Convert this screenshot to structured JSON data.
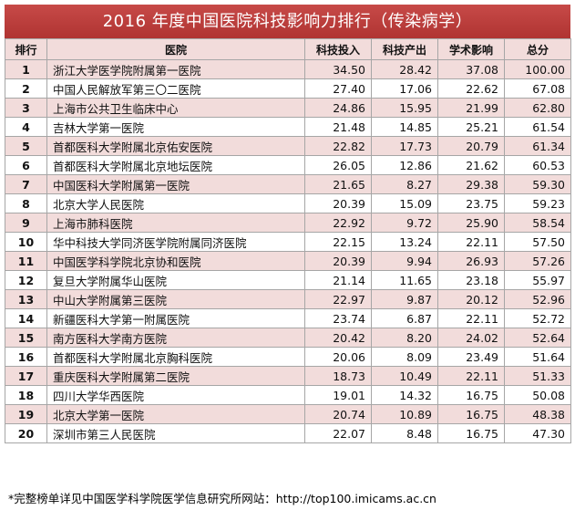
{
  "title": "2016 年度中国医院科技影响力排行（传染病学）",
  "headers": {
    "rank": "排行",
    "hospital": "医院",
    "tech_input": "科技投入",
    "tech_output": "科技产出",
    "academic": "学术影响",
    "total": "总分"
  },
  "rows": [
    {
      "rank": "1",
      "hospital": "浙江大学医学院附属第一医院",
      "input": "34.50",
      "output": "28.42",
      "academic": "37.08",
      "total": "100.00"
    },
    {
      "rank": "2",
      "hospital": "中国人民解放军第三〇二医院",
      "input": "27.40",
      "output": "17.06",
      "academic": "22.62",
      "total": "67.08"
    },
    {
      "rank": "3",
      "hospital": "上海市公共卫生临床中心",
      "input": "24.86",
      "output": "15.95",
      "academic": "21.99",
      "total": "62.80"
    },
    {
      "rank": "4",
      "hospital": "吉林大学第一医院",
      "input": "21.48",
      "output": "14.85",
      "academic": "25.21",
      "total": "61.54"
    },
    {
      "rank": "5",
      "hospital": "首都医科大学附属北京佑安医院",
      "input": "22.82",
      "output": "17.73",
      "academic": "20.79",
      "total": "61.34"
    },
    {
      "rank": "6",
      "hospital": "首都医科大学附属北京地坛医院",
      "input": "26.05",
      "output": "12.86",
      "academic": "21.62",
      "total": "60.53"
    },
    {
      "rank": "7",
      "hospital": "中国医科大学附属第一医院",
      "input": "21.65",
      "output": "8.27",
      "academic": "29.38",
      "total": "59.30"
    },
    {
      "rank": "8",
      "hospital": "北京大学人民医院",
      "input": "20.39",
      "output": "15.09",
      "academic": "23.75",
      "total": "59.23"
    },
    {
      "rank": "9",
      "hospital": "上海市肺科医院",
      "input": "22.92",
      "output": "9.72",
      "academic": "25.90",
      "total": "58.54"
    },
    {
      "rank": "10",
      "hospital": "华中科技大学同济医学院附属同济医院",
      "input": "22.15",
      "output": "13.24",
      "academic": "22.11",
      "total": "57.50"
    },
    {
      "rank": "11",
      "hospital": "中国医学科学院北京协和医院",
      "input": "20.39",
      "output": "9.94",
      "academic": "26.93",
      "total": "57.26"
    },
    {
      "rank": "12",
      "hospital": "复旦大学附属华山医院",
      "input": "21.14",
      "output": "11.65",
      "academic": "23.18",
      "total": "55.97"
    },
    {
      "rank": "13",
      "hospital": "中山大学附属第三医院",
      "input": "22.97",
      "output": "9.87",
      "academic": "20.12",
      "total": "52.96"
    },
    {
      "rank": "14",
      "hospital": "新疆医科大学第一附属医院",
      "input": "23.74",
      "output": "6.87",
      "academic": "22.11",
      "total": "52.72"
    },
    {
      "rank": "15",
      "hospital": "南方医科大学南方医院",
      "input": "20.42",
      "output": "8.20",
      "academic": "24.02",
      "total": "52.64"
    },
    {
      "rank": "16",
      "hospital": "首都医科大学附属北京胸科医院",
      "input": "20.06",
      "output": "8.09",
      "academic": "23.49",
      "total": "51.64"
    },
    {
      "rank": "17",
      "hospital": "重庆医科大学附属第二医院",
      "input": "18.73",
      "output": "10.49",
      "academic": "22.11",
      "total": "51.33"
    },
    {
      "rank": "18",
      "hospital": "四川大学华西医院",
      "input": "19.01",
      "output": "14.32",
      "academic": "16.75",
      "total": "50.08"
    },
    {
      "rank": "19",
      "hospital": "北京大学第一医院",
      "input": "20.74",
      "output": "10.89",
      "academic": "16.75",
      "total": "48.38"
    },
    {
      "rank": "20",
      "hospital": "深圳市第三人民医院",
      "input": "22.07",
      "output": "8.48",
      "academic": "16.75",
      "total": "47.30"
    }
  ],
  "footnote": "*完整榜单详见中国医学科学院医学信息研究所网站：http://top100.imicams.ac.cn",
  "colors": {
    "title_bg": "#b83c3a",
    "odd_row_bg": "#f2dcdb",
    "even_row_bg": "#ffffff",
    "border": "#a6a6a6"
  }
}
